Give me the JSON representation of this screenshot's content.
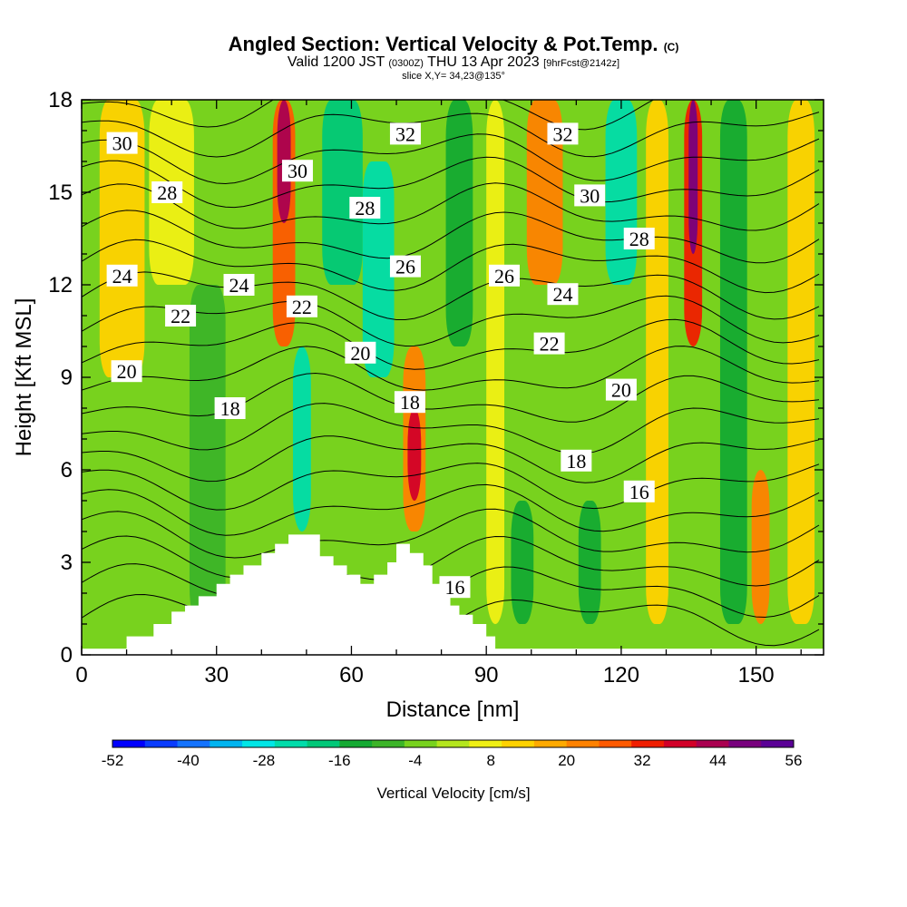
{
  "title": {
    "main": "Angled Section: Vertical Velocity & Pot.Temp.",
    "main_mark": "(C)",
    "valid_prefix": "Valid 1200 JST",
    "valid_utc": "(0300Z)",
    "valid_date": "THU 13 Apr 2023",
    "valid_fcst": "[9hrFcst@2142z]",
    "slice": "slice X,Y= 34,23@135°"
  },
  "chart_data": {
    "type": "heatmap",
    "xlabel": "Distance [nm]",
    "ylabel": "Height [Kft MSL]",
    "xlim": [
      0,
      165
    ],
    "ylim": [
      0,
      18
    ],
    "x_ticks": [
      "0",
      "30",
      "60",
      "90",
      "120",
      "150"
    ],
    "y_ticks": [
      "0",
      "3",
      "6",
      "9",
      "12",
      "15",
      "18"
    ],
    "colorbar": {
      "title": "Vertical Velocity [cm/s]",
      "tick_labels": [
        "-52",
        "-40",
        "-28",
        "-16",
        "-4",
        "8",
        "20",
        "32",
        "44",
        "56"
      ],
      "min": -52,
      "max": 56,
      "colors": [
        "#0000ff",
        "#0a3cff",
        "#1473ff",
        "#00b4f0",
        "#00e6e6",
        "#00dcaa",
        "#00c878",
        "#14aa32",
        "#3cb428",
        "#78d21e",
        "#b4e61e",
        "#f0f014",
        "#ffd200",
        "#ffaa00",
        "#ff8200",
        "#ff5a00",
        "#f01e00",
        "#d20028",
        "#aa0050",
        "#78007d",
        "#5a0096"
      ]
    },
    "wind_field_description_shade": {
      "updrafts_nm": [
        9,
        45,
        73,
        103,
        136,
        151
      ],
      "downdrafts_nm": [
        48,
        67,
        85,
        120,
        145
      ]
    },
    "theta_contour_labels": [
      {
        "label": "30",
        "x": 9,
        "y": 16.6
      },
      {
        "label": "28",
        "x": 19,
        "y": 15.0
      },
      {
        "label": "24",
        "x": 9,
        "y": 12.3
      },
      {
        "label": "24",
        "x": 35,
        "y": 12.0
      },
      {
        "label": "22",
        "x": 22,
        "y": 11.0
      },
      {
        "label": "20",
        "x": 10,
        "y": 9.2
      },
      {
        "label": "18",
        "x": 33,
        "y": 8.0
      },
      {
        "label": "30",
        "x": 48,
        "y": 15.7
      },
      {
        "label": "22",
        "x": 49,
        "y": 11.3
      },
      {
        "label": "32",
        "x": 72,
        "y": 16.9
      },
      {
        "label": "28",
        "x": 63,
        "y": 14.5
      },
      {
        "label": "26",
        "x": 72,
        "y": 12.6
      },
      {
        "label": "20",
        "x": 62,
        "y": 9.8
      },
      {
        "label": "18",
        "x": 73,
        "y": 8.2
      },
      {
        "label": "16",
        "x": 83,
        "y": 2.2
      },
      {
        "label": "32",
        "x": 107,
        "y": 16.9
      },
      {
        "label": "30",
        "x": 113,
        "y": 14.9
      },
      {
        "label": "26",
        "x": 94,
        "y": 12.3
      },
      {
        "label": "24",
        "x": 107,
        "y": 11.7
      },
      {
        "label": "22",
        "x": 104,
        "y": 10.1
      },
      {
        "label": "28",
        "x": 124,
        "y": 13.5
      },
      {
        "label": "20",
        "x": 120,
        "y": 8.6
      },
      {
        "label": "18",
        "x": 110,
        "y": 6.3
      },
      {
        "label": "16",
        "x": 124,
        "y": 5.3
      }
    ],
    "theta_levels_C": [
      14,
      15,
      16,
      17,
      18,
      19,
      20,
      21,
      22,
      23,
      24,
      25,
      26,
      27,
      28,
      29,
      30,
      31,
      32,
      33
    ],
    "terrain_kft": [
      {
        "x": 10,
        "h": 0.6
      },
      {
        "x": 16,
        "h": 1.0
      },
      {
        "x": 20,
        "h": 1.4
      },
      {
        "x": 23,
        "h": 1.6
      },
      {
        "x": 26,
        "h": 1.9
      },
      {
        "x": 30,
        "h": 2.3
      },
      {
        "x": 33,
        "h": 2.6
      },
      {
        "x": 36,
        "h": 2.9
      },
      {
        "x": 40,
        "h": 3.3
      },
      {
        "x": 43,
        "h": 3.6
      },
      {
        "x": 46,
        "h": 3.9
      },
      {
        "x": 50,
        "h": 3.9
      },
      {
        "x": 53,
        "h": 3.2
      },
      {
        "x": 56,
        "h": 2.9
      },
      {
        "x": 59,
        "h": 2.6
      },
      {
        "x": 62,
        "h": 2.3
      },
      {
        "x": 65,
        "h": 2.6
      },
      {
        "x": 68,
        "h": 3.0
      },
      {
        "x": 70,
        "h": 3.6
      },
      {
        "x": 73,
        "h": 3.3
      },
      {
        "x": 76,
        "h": 2.9
      },
      {
        "x": 78,
        "h": 2.3
      },
      {
        "x": 80,
        "h": 1.9
      },
      {
        "x": 82,
        "h": 1.6
      },
      {
        "x": 84,
        "h": 1.3
      },
      {
        "x": 87,
        "h": 1.0
      },
      {
        "x": 90,
        "h": 0.6
      },
      {
        "x": 92,
        "h": 0.4
      }
    ]
  }
}
